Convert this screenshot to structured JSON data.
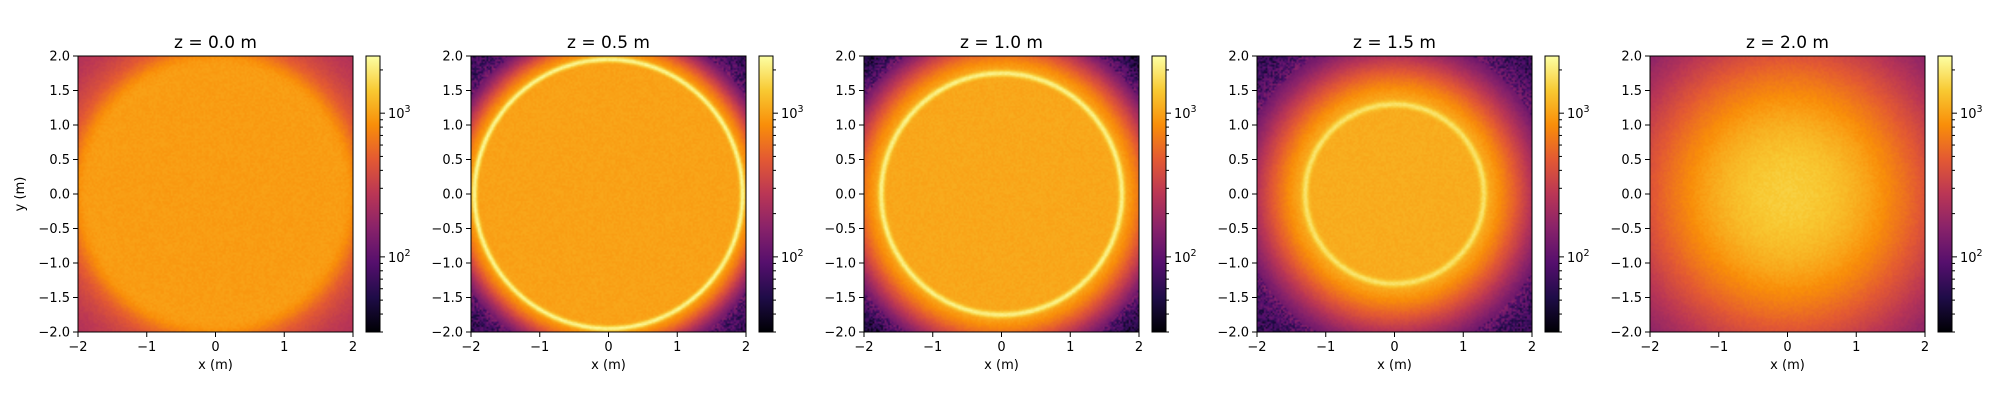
{
  "chart_data": {
    "type": "heatmap",
    "shared": {
      "xlabel": "x (m)",
      "ylabel": "y (m)",
      "xlim": [
        -2,
        2
      ],
      "ylim": [
        -2,
        2
      ],
      "xticks": [
        -2,
        -1,
        0,
        1,
        2
      ],
      "yticks": [
        -2.0,
        -1.5,
        -1.0,
        -0.5,
        0.0,
        0.5,
        1.0,
        1.5,
        2.0
      ],
      "xtick_labels": [
        "−2",
        "−1",
        "0",
        "1",
        "2"
      ],
      "ytick_labels": [
        "−2.0",
        "−1.5",
        "−1.0",
        "−0.5",
        "0.0",
        "0.5",
        "1.0",
        "1.5",
        "2.0"
      ],
      "colormap": "inferno",
      "color_scale": "log",
      "color_range": [
        30,
        2500
      ],
      "colorbar_ticks": [
        {
          "value": 1000,
          "base": "10",
          "exp": "3"
        },
        {
          "value": 100,
          "base": "10",
          "exp": "2"
        }
      ]
    },
    "panels": [
      {
        "title": "z = 0.0 m",
        "z": 0.0,
        "ring_radius": 2.0,
        "ring_peak": 1050,
        "interior_level": 950,
        "outside_level": 200
      },
      {
        "title": "z = 0.5 m",
        "z": 0.5,
        "ring_radius": 1.95,
        "ring_peak": 2300,
        "interior_level": 1000,
        "outside_level": 70
      },
      {
        "title": "z = 1.0 m",
        "z": 1.0,
        "ring_radius": 1.75,
        "ring_peak": 2200,
        "interior_level": 1050,
        "outside_level": 40
      },
      {
        "title": "z = 1.5 m",
        "z": 1.5,
        "ring_radius": 1.3,
        "ring_peak": 1900,
        "interior_level": 1100,
        "outside_level": 60
      },
      {
        "title": "z = 2.0 m",
        "z": 2.0,
        "ring_radius": 0.0,
        "ring_peak": 1500,
        "interior_level": 1300,
        "outside_level": 100
      }
    ]
  }
}
